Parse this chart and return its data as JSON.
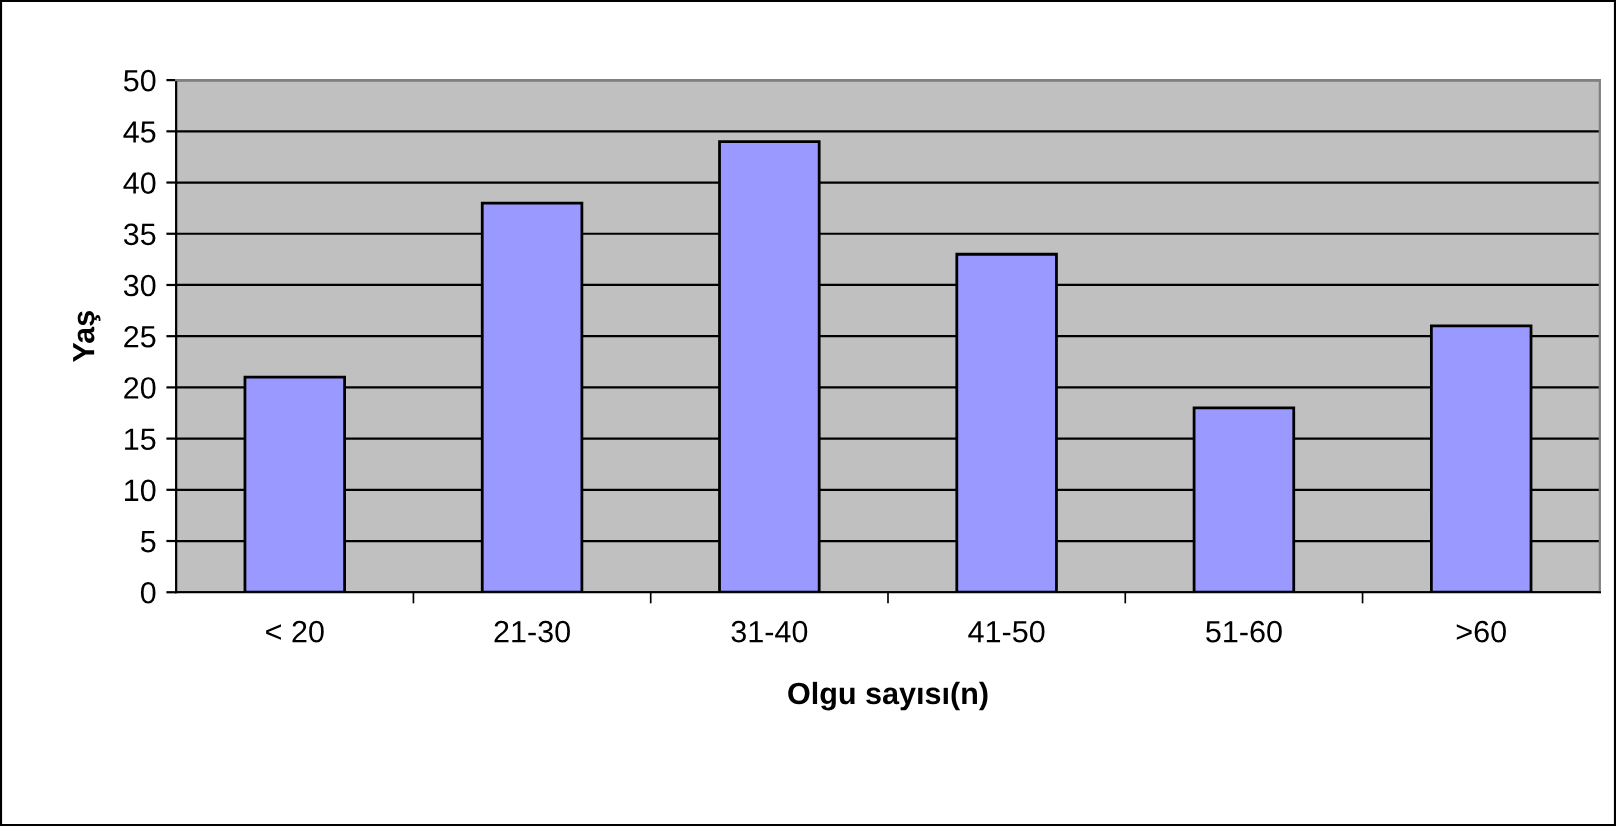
{
  "chart_data": {
    "type": "bar",
    "xlabel": "Olgu sayısı(n)",
    "ylabel": "Yaş",
    "categories": [
      "< 20",
      "21-30",
      "31-40",
      "41-50",
      "51-60",
      ">60"
    ],
    "values": [
      21,
      38,
      44,
      33,
      18,
      26
    ],
    "color": "#9999ff",
    "ylim": [
      0,
      50
    ],
    "yticks": [
      0,
      5,
      10,
      15,
      20,
      25,
      30,
      35,
      40,
      45,
      50
    ],
    "grid": "y"
  }
}
